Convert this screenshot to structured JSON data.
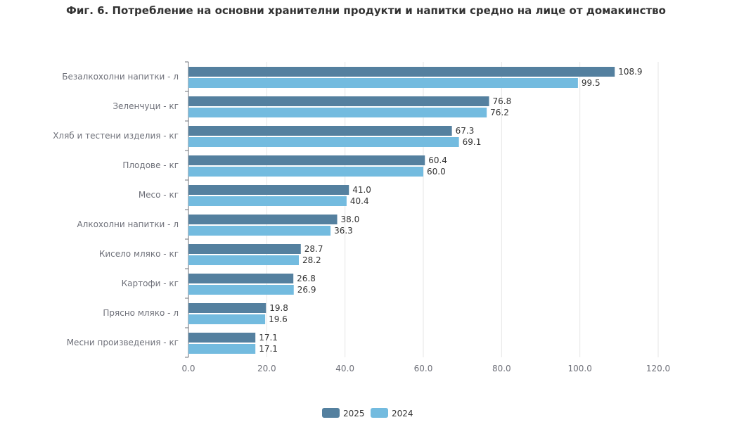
{
  "chart_data": {
    "type": "bar",
    "orientation": "horizontal",
    "title": "Фиг. 6. Потребление на основни хранителни продукти и напитки средно на лице от домакинство",
    "categories": [
      "Безалкохолни напитки - л",
      "Зеленчуци - кг ",
      "Хляб и тестени изделия - кг",
      "Плодове - кг ",
      "Месо - кг",
      "Алкохолни напитки - л",
      "Кисело мляко - кг",
      "Картофи - кг",
      "Прясно мляко - л",
      "Месни произведения  - кг"
    ],
    "series": [
      {
        "name": "2025",
        "color": "#54809f",
        "values": [
          108.9,
          76.8,
          67.3,
          60.4,
          41.0,
          38.0,
          28.7,
          26.8,
          19.8,
          17.1
        ]
      },
      {
        "name": "2024",
        "color": "#73bbdf",
        "values": [
          99.5,
          76.2,
          69.1,
          60.0,
          40.4,
          36.3,
          28.2,
          26.9,
          19.6,
          17.1
        ]
      }
    ],
    "xlim": [
      0,
      120
    ],
    "xticks": [
      "0.0",
      "20.0",
      "40.0",
      "60.0",
      "80.0",
      "100.0",
      "120.0"
    ],
    "grid": true,
    "legend": "bottom-center"
  }
}
